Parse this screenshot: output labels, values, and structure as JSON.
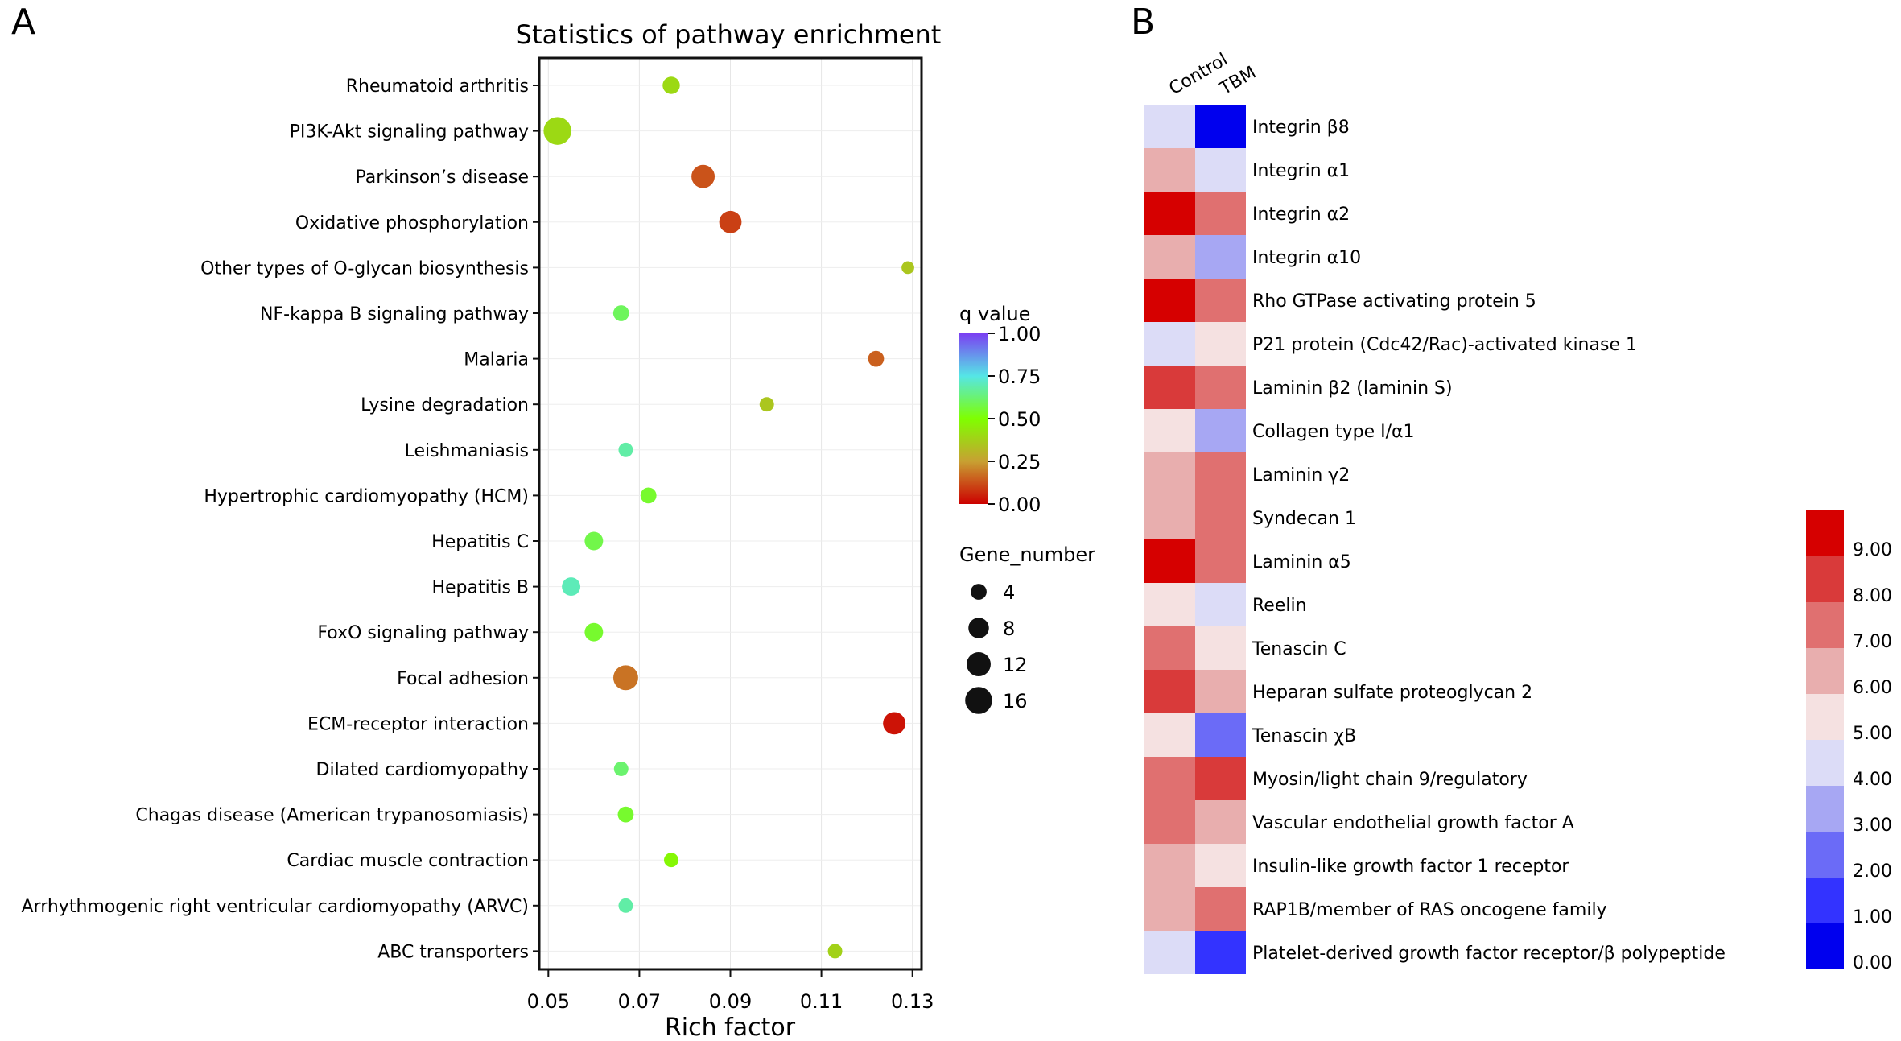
{
  "panels": {
    "a_letter": "A",
    "b_letter": "B"
  },
  "chart_data": [
    {
      "panel": "A",
      "type": "scatter",
      "title": "Statistics of pathway enrichment",
      "xlabel": "Rich factor",
      "ylabel": "",
      "xlim": [
        0.048,
        0.132
      ],
      "xticks": [
        0.05,
        0.07,
        0.09,
        0.11,
        0.13
      ],
      "xtick_labels": [
        "0.05",
        "0.07",
        "0.09",
        "0.11",
        "0.13"
      ],
      "grid": true,
      "categories": [
        "Rheumatoid arthritis",
        "PI3K-Akt signaling pathway",
        "Parkinson’s disease",
        "Oxidative phosphorylation",
        "Other types of O-glycan biosynthesis",
        "NF-kappa B signaling pathway",
        "Malaria",
        "Lysine degradation",
        "Leishmaniasis",
        "Hypertrophic cardiomyopathy (HCM)",
        "Hepatitis C",
        "Hepatitis B",
        "FoxO signaling pathway",
        "Focal adhesion",
        "ECM-receptor interaction",
        "Dilated cardiomyopathy",
        "Chagas disease (American trypanosomiasis)",
        "Cardiac muscle contraction",
        "Arrhythmogenic right ventricular cardiomyopathy (ARVC)",
        "ABC transporters"
      ],
      "rich_factor": [
        0.077,
        0.052,
        0.084,
        0.09,
        0.129,
        0.066,
        0.122,
        0.098,
        0.067,
        0.072,
        0.06,
        0.055,
        0.06,
        0.067,
        0.126,
        0.066,
        0.067,
        0.077,
        0.067,
        0.113
      ],
      "gene_number": [
        5,
        17,
        11,
        10,
        2,
        4,
        4,
        3,
        3,
        4,
        6,
        6,
        6,
        13,
        10,
        3,
        4,
        3,
        3,
        3
      ],
      "q_value": [
        0.4,
        0.4,
        0.13,
        0.1,
        0.35,
        0.6,
        0.15,
        0.35,
        0.68,
        0.55,
        0.58,
        0.7,
        0.55,
        0.18,
        0.03,
        0.62,
        0.55,
        0.48,
        0.68,
        0.38
      ],
      "color_legend": {
        "title": "q value",
        "ticks": [
          1.0,
          0.75,
          0.5,
          0.25,
          0.0
        ],
        "tick_labels": [
          "1.00",
          "0.75",
          "0.50",
          "0.25",
          "0.00"
        ],
        "stops": [
          "#cc0000",
          "#c8a032",
          "#7fff00",
          "#55e6e6",
          "#7b3ff2"
        ],
        "placement": "right"
      },
      "size_legend": {
        "title": "Gene_number",
        "values": [
          4,
          8,
          12,
          16
        ],
        "labels": [
          "4",
          "8",
          "12",
          "16"
        ],
        "placement": "right"
      }
    },
    {
      "panel": "B",
      "type": "heatmap",
      "columns": [
        "Control",
        "TBM"
      ],
      "rows": [
        "Integrin β8",
        "Integrin α1",
        "Integrin α2",
        "Integrin α10",
        "Rho GTPase activating protein 5",
        "P21 protein (Cdc42/Rac)-activated kinase 1",
        "Laminin β2 (laminin S)",
        "Collagen type I/α1",
        "Laminin γ2",
        "Syndecan 1",
        "Laminin α5",
        "Reelin",
        "Tenascin C",
        "Heparan sulfate proteoglycan 2",
        "Tenascin χB",
        "Myosin/light chain 9/regulatory",
        "Vascular endothelial growth factor A",
        "Insulin-like growth factor 1 receptor",
        "RAP1B/member of RAS oncogene family",
        "Platelet-derived growth factor receptor/β polypeptide"
      ],
      "values": [
        [
          4.5,
          0.2
        ],
        [
          6.5,
          4.5
        ],
        [
          9.5,
          7.5
        ],
        [
          6.5,
          3.5
        ],
        [
          9.5,
          7.5
        ],
        [
          4.5,
          5.5
        ],
        [
          8.5,
          7.5
        ],
        [
          5.5,
          3.5
        ],
        [
          6.5,
          7.5
        ],
        [
          6.5,
          7.5
        ],
        [
          9.5,
          7.5
        ],
        [
          5.5,
          4.5
        ],
        [
          7.5,
          5.5
        ],
        [
          8.5,
          6.5
        ],
        [
          5.5,
          2.5
        ],
        [
          7.5,
          8.5
        ],
        [
          7.5,
          6.5
        ],
        [
          6.5,
          5.5
        ],
        [
          6.5,
          7.5
        ],
        [
          4.5,
          1.5
        ]
      ],
      "color_scale": {
        "ticks": [
          9,
          8,
          7,
          6,
          5,
          4,
          3,
          2,
          1,
          0
        ],
        "tick_labels": [
          "9.00",
          "8.00",
          "7.00",
          "6.00",
          "5.00",
          "4.00",
          "3.00",
          "2.00",
          "1.00",
          "0.00"
        ],
        "bins": [
          "#0000ee",
          "#3333ff",
          "#6b6bf7",
          "#a7a7f3",
          "#dcdcf7",
          "#f5e1e1",
          "#e8aeae",
          "#e07070",
          "#d93a3a",
          "#d60000"
        ],
        "placement": "right"
      }
    }
  ]
}
